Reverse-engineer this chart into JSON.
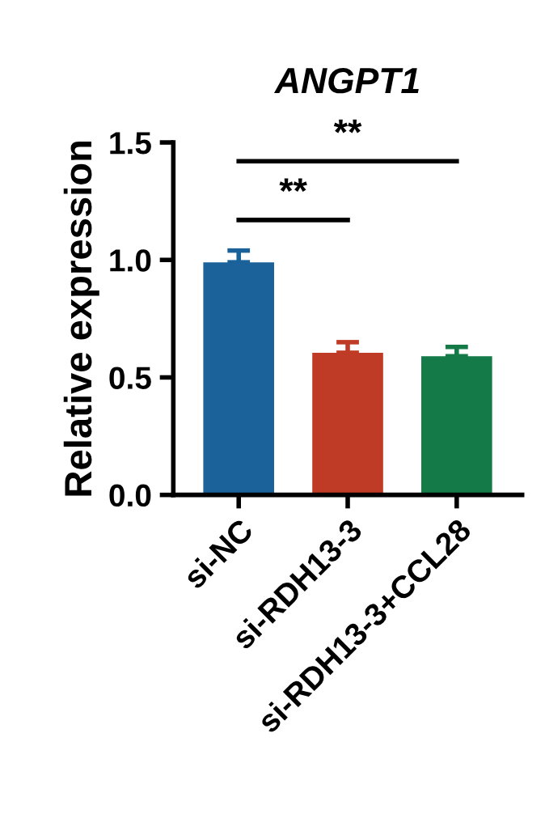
{
  "chart_data": {
    "type": "bar",
    "title": "ANGPT1",
    "ylabel": "Relative expression",
    "categories": [
      "si-NC",
      "si-RDH13-3",
      "si-RDH13-3+CCL28"
    ],
    "values": [
      0.99,
      0.605,
      0.59
    ],
    "errors": [
      0.05,
      0.045,
      0.04
    ],
    "colors": [
      "#1a6299",
      "#c03b25",
      "#137a48"
    ],
    "ylim": [
      0,
      1.5
    ],
    "yticks": [
      {
        "value": 0,
        "label": "0.0"
      },
      0.5,
      {
        "value": 1,
        "label": "1.0"
      },
      1.5
    ],
    "annotations": [
      "**",
      "**"
    ],
    "grid": false,
    "legend": false
  }
}
